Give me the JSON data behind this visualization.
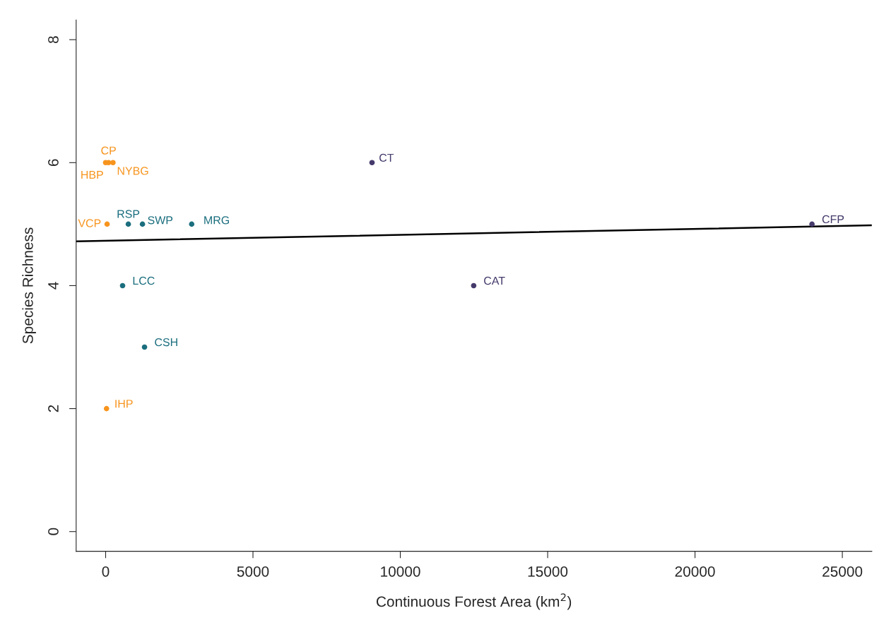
{
  "chart_data": {
    "type": "scatter",
    "xlabel": "Continuous Forest Area (km$^{2}$)",
    "ylabel": "Species Richness",
    "xlim": [
      -1000,
      26000
    ],
    "ylim": [
      -0.32,
      8.32
    ],
    "xticks": [
      0,
      5000,
      10000,
      15000,
      20000,
      25000
    ],
    "yticks": [
      0,
      2,
      4,
      6,
      8
    ],
    "grid": false,
    "series": [
      {
        "marker": "circle",
        "x": [
          0,
          100,
          250,
          50,
          770,
          1250,
          2920,
          575,
          1320,
          30,
          9040,
          12490,
          23970
        ],
        "values": [
          6,
          6,
          6,
          5,
          5,
          5,
          5,
          4,
          3,
          2,
          6,
          4,
          5
        ],
        "colors": [
          "#f7941d",
          "#f7941d",
          "#f7941d",
          "#f7941d",
          "#1a6e7e",
          "#1a6e7e",
          "#1a6e7e",
          "#1a6e7e",
          "#1a6e7e",
          "#f7941d",
          "#453a6b",
          "#453a6b",
          "#453a6b"
        ]
      },
      {
        "type": "line",
        "x": [
          -1000,
          26000
        ],
        "values": [
          4.72,
          4.98
        ],
        "color": "#000000",
        "marker": "none",
        "line_style": "solid"
      }
    ],
    "annotations": [
      {
        "text": "HBP",
        "x": 0,
        "y": 6
      },
      {
        "text": "CP",
        "x": 100,
        "y": 6
      },
      {
        "text": "NYBG",
        "x": 250,
        "y": 6
      },
      {
        "text": "VCP",
        "x": 50,
        "y": 5
      },
      {
        "text": "RSP",
        "x": 770,
        "y": 5
      },
      {
        "text": "SWP",
        "x": 1250,
        "y": 5
      },
      {
        "text": "MRG",
        "x": 2920,
        "y": 5
      },
      {
        "text": "LCC",
        "x": 575,
        "y": 4
      },
      {
        "text": "CSH",
        "x": 1320,
        "y": 3
      },
      {
        "text": "IHP",
        "x": 30,
        "y": 2
      },
      {
        "text": "CT",
        "x": 9040,
        "y": 6
      },
      {
        "text": "CAT",
        "x": 12490,
        "y": 4
      },
      {
        "text": "CFP",
        "x": 23970,
        "y": 5
      }
    ]
  }
}
